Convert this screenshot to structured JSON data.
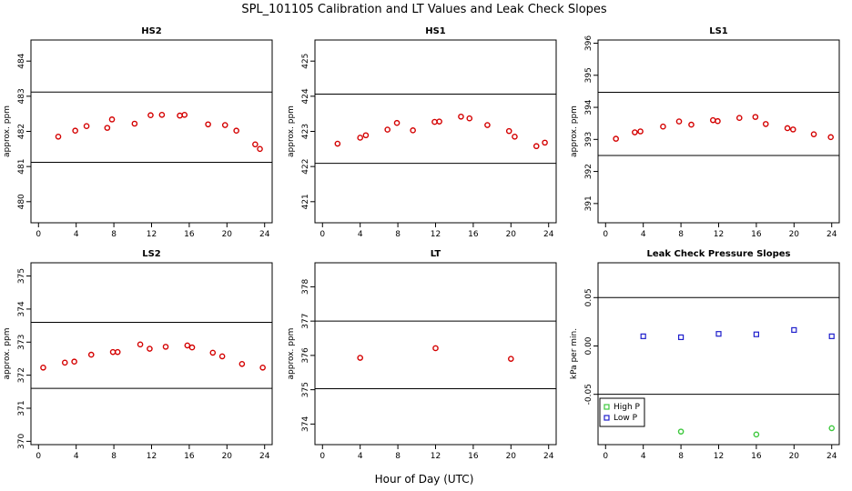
{
  "figure": {
    "title": "SPL_101105  Calibration and LT Values and Leak Check Slopes",
    "xlabel": "Hour of Day (UTC)"
  },
  "chart_data": [
    {
      "type": "scatter",
      "title": "HS2",
      "ylabel": "approx. ppm",
      "xlim": [
        -0.8,
        24.8
      ],
      "ylim": [
        479.4,
        484.6
      ],
      "xticks": [
        0,
        4,
        8,
        12,
        16,
        20,
        24
      ],
      "yticks": [
        480,
        481,
        482,
        483,
        484
      ],
      "hlines": [
        481.12,
        483.12
      ],
      "series": [
        {
          "color": "#d40000",
          "marker": "circle",
          "x": [
            2.1,
            3.9,
            5.1,
            7.3,
            7.8,
            10.2,
            11.9,
            13.1,
            15.0,
            15.5,
            18.0,
            19.8,
            21.0,
            23.0,
            23.5
          ],
          "y": [
            481.85,
            482.02,
            482.15,
            482.1,
            482.34,
            482.22,
            482.46,
            482.47,
            482.45,
            482.47,
            482.2,
            482.18,
            482.02,
            481.63,
            481.5
          ]
        }
      ]
    },
    {
      "type": "scatter",
      "title": "HS1",
      "ylabel": "approx. ppm",
      "xlim": [
        -0.8,
        24.8
      ],
      "ylim": [
        420.4,
        425.6
      ],
      "xticks": [
        0,
        4,
        8,
        12,
        16,
        20,
        24
      ],
      "yticks": [
        421,
        422,
        423,
        424,
        425
      ],
      "hlines": [
        422.09,
        424.06
      ],
      "series": [
        {
          "color": "#d40000",
          "marker": "circle",
          "x": [
            1.6,
            4.0,
            4.6,
            6.9,
            7.9,
            9.6,
            11.9,
            12.4,
            14.7,
            15.6,
            17.5,
            19.8,
            20.4,
            22.7,
            23.6
          ],
          "y": [
            422.65,
            422.82,
            422.89,
            423.05,
            423.24,
            423.03,
            423.27,
            423.28,
            423.42,
            423.37,
            423.18,
            423.01,
            422.85,
            422.58,
            422.68
          ]
        }
      ]
    },
    {
      "type": "scatter",
      "title": "LS1",
      "ylabel": "approx. ppm",
      "xlim": [
        -0.8,
        24.8
      ],
      "ylim": [
        390.4,
        396.1
      ],
      "xticks": [
        0,
        4,
        8,
        12,
        16,
        20,
        24
      ],
      "yticks": [
        391,
        392,
        393,
        394,
        395,
        396
      ],
      "hlines": [
        392.5,
        394.47
      ],
      "series": [
        {
          "color": "#d40000",
          "marker": "circle",
          "x": [
            1.1,
            3.1,
            3.7,
            6.1,
            7.8,
            9.1,
            11.4,
            11.9,
            14.2,
            15.9,
            17.0,
            19.3,
            19.9,
            22.1,
            23.9
          ],
          "y": [
            393.02,
            393.22,
            393.25,
            393.4,
            393.56,
            393.46,
            393.6,
            393.57,
            393.67,
            393.7,
            393.48,
            393.35,
            393.31,
            393.16,
            393.07
          ]
        }
      ]
    },
    {
      "type": "scatter",
      "title": "LS2",
      "ylabel": "approx. ppm",
      "xlim": [
        -0.8,
        24.8
      ],
      "ylim": [
        369.9,
        375.4
      ],
      "xticks": [
        0,
        4,
        8,
        12,
        16,
        20,
        24
      ],
      "yticks": [
        370,
        371,
        372,
        373,
        374,
        375
      ],
      "hlines": [
        371.6,
        373.6
      ],
      "series": [
        {
          "color": "#d40000",
          "marker": "circle",
          "x": [
            0.5,
            2.8,
            3.8,
            5.6,
            7.9,
            8.4,
            10.8,
            11.8,
            13.5,
            15.8,
            16.3,
            18.5,
            19.5,
            21.6,
            23.8
          ],
          "y": [
            372.23,
            372.38,
            372.41,
            372.62,
            372.7,
            372.7,
            372.93,
            372.8,
            372.86,
            372.9,
            372.84,
            372.68,
            372.57,
            372.34,
            372.23
          ]
        }
      ]
    },
    {
      "type": "scatter",
      "title": "LT",
      "ylabel": "approx. ppm",
      "xlim": [
        -0.8,
        24.8
      ],
      "ylim": [
        373.4,
        378.7
      ],
      "xticks": [
        0,
        4,
        8,
        12,
        16,
        20,
        24
      ],
      "yticks": [
        374,
        375,
        376,
        377,
        378
      ],
      "hlines": [
        375.03,
        377.0
      ],
      "series": [
        {
          "color": "#d40000",
          "marker": "circle",
          "x": [
            4.0,
            12.0,
            20.0
          ],
          "y": [
            375.93,
            376.21,
            375.9
          ]
        }
      ]
    },
    {
      "type": "scatter",
      "title": "Leak Check Pressure Slopes",
      "ylabel": "kPa per min.",
      "xlim": [
        -0.8,
        24.8
      ],
      "ylim": [
        -0.102,
        0.086
      ],
      "xticks": [
        0,
        4,
        8,
        12,
        16,
        20,
        24
      ],
      "yticks": [
        -0.05,
        0.0,
        0.05
      ],
      "ytick_labels": [
        "-0.05",
        "0.00",
        "0.05"
      ],
      "hlines": [
        -0.05,
        0.05
      ],
      "legend": {
        "position": "bottom-left",
        "entries": [
          {
            "label": "High P",
            "color": "#3cc83c"
          },
          {
            "label": "Low P",
            "color": "#1e1ecc"
          }
        ]
      },
      "series": [
        {
          "name": "High P",
          "color": "#3cc83c",
          "marker": "circle",
          "x": [
            8.0,
            16.0,
            24.0
          ],
          "y": [
            -0.0885,
            -0.0915,
            -0.085
          ]
        },
        {
          "name": "Low P",
          "color": "#1e1ecc",
          "marker": "square",
          "x": [
            4.0,
            8.0,
            12.0,
            16.0,
            20.0,
            24.0
          ],
          "y": [
            0.01,
            0.009,
            0.0125,
            0.012,
            0.0165,
            0.01
          ]
        }
      ]
    }
  ]
}
